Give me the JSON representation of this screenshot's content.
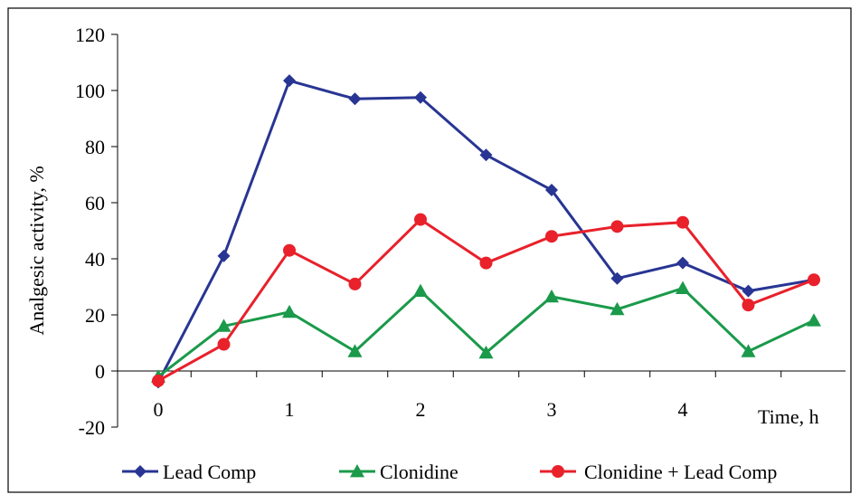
{
  "chart_data": {
    "type": "line",
    "title": "",
    "xlabel": "Time, h",
    "ylabel": "Analgesic activity, %",
    "x": [
      0,
      0.5,
      1,
      1.5,
      2,
      2.5,
      3,
      3.5,
      4,
      4.5,
      5
    ],
    "xlim": [
      0,
      5
    ],
    "ylim": [
      -20,
      120
    ],
    "x_ticks": [
      {
        "value": 0,
        "label": "0"
      },
      {
        "value": 1,
        "label": "1"
      },
      {
        "value": 2,
        "label": "2"
      },
      {
        "value": 3,
        "label": "3"
      },
      {
        "value": 4,
        "label": "4"
      }
    ],
    "y_ticks": [
      {
        "value": -20,
        "label": "-20"
      },
      {
        "value": 0,
        "label": "0"
      },
      {
        "value": 20,
        "label": "20"
      },
      {
        "value": 40,
        "label": "40"
      },
      {
        "value": 60,
        "label": "60"
      },
      {
        "value": 80,
        "label": "80"
      },
      {
        "value": 100,
        "label": "100"
      },
      {
        "value": 120,
        "label": "120"
      }
    ],
    "grid": false,
    "legend_position": "bottom",
    "series": [
      {
        "name": "Lead Comp",
        "color": "#283593",
        "marker": "diamond",
        "values": [
          -4,
          41,
          103.5,
          97,
          97.5,
          77,
          64.5,
          33,
          38.5,
          28.5,
          32.5
        ]
      },
      {
        "name": "Clonidine",
        "color": "#1a9a4a",
        "marker": "triangle",
        "values": [
          -2,
          16,
          21,
          7,
          28.5,
          6.5,
          26.5,
          22,
          29.5,
          7,
          18
        ]
      },
      {
        "name": "Clonidine +  Lead Comp",
        "color": "#e8212b",
        "marker": "circle",
        "values": [
          -3.5,
          9.5,
          43,
          31,
          54,
          38.5,
          48,
          51.5,
          53,
          23.5,
          32.5
        ]
      }
    ]
  }
}
